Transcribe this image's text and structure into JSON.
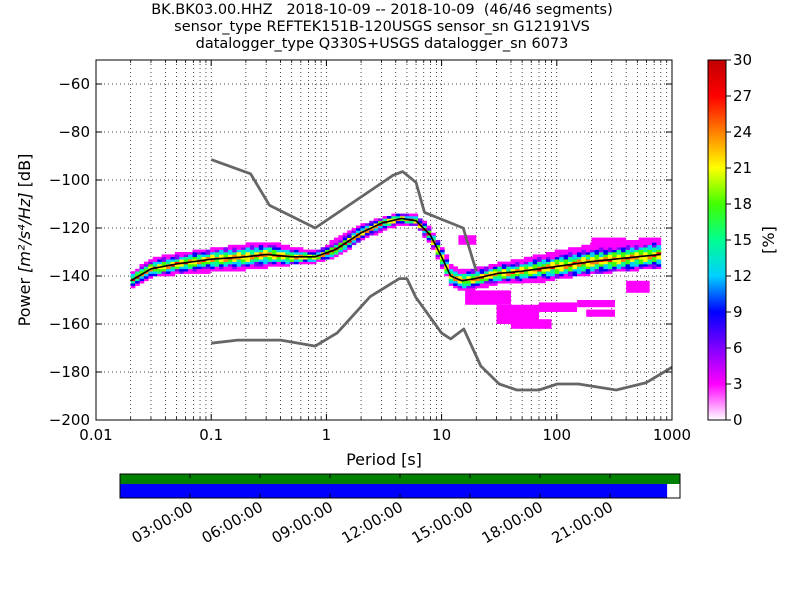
{
  "title_lines": [
    "BK.BK03.00.HHZ   2018-10-09 -- 2018-10-09  (46/46 segments)",
    "sensor_type REFTEK151B-120USGS sensor_sn G12191VS",
    "datalogger_type Q330S+USGS datalogger_sn 6073"
  ],
  "chart_data": {
    "type": "heatmap",
    "xlabel": "Period [s]",
    "ylabel_prefix": "Power ",
    "ylabel_units": "[m²/s⁴/Hz]",
    "ylabel_suffix": " [dB]",
    "x_scale": "log",
    "xlim": [
      0.01,
      1000
    ],
    "ylim": [
      -200,
      -50
    ],
    "x_ticks": [
      0.01,
      0.1,
      1,
      10,
      100,
      1000
    ],
    "x_tick_labels": [
      "0.01",
      "0.1",
      "1",
      "10",
      "100",
      "1000"
    ],
    "y_ticks": [
      -200,
      -180,
      -160,
      -140,
      -120,
      -100,
      -80,
      -60
    ],
    "y_tick_labels": [
      "−200",
      "−180",
      "−160",
      "−140",
      "−120",
      "−100",
      "−80",
      "−60"
    ],
    "grid": true,
    "colorbar": {
      "label": "[%]",
      "range": [
        0,
        30
      ],
      "ticks": [
        "0",
        "3",
        "6",
        "9",
        "12",
        "15",
        "18",
        "21",
        "24",
        "27",
        "30"
      ],
      "colors": [
        "#ffffff",
        "#ff00ff",
        "#8000ff",
        "#0000ff",
        "#00d0ff",
        "#00ff90",
        "#40ff00",
        "#ffff00",
        "#ff8000",
        "#ff0000",
        "#c00000"
      ]
    },
    "nhnm_line": {
      "color": "#666666",
      "x": [
        0.1,
        0.22,
        0.32,
        0.8,
        3.8,
        4.6,
        6,
        7.1,
        15.4,
        20
      ],
      "y": [
        -91.5,
        -97.4,
        -110.5,
        -120,
        -98,
        -96.5,
        -101,
        -113.5,
        -120,
        -138
      ]
    },
    "nlnm_line": {
      "color": "#666666",
      "x": [
        0.1,
        0.17,
        0.4,
        0.8,
        1.24,
        2.4,
        4.3,
        5,
        6,
        10,
        12,
        15.6,
        21.9,
        31.6,
        45,
        70,
        101,
        154,
        328,
        600,
        1000
      ],
      "y": [
        -168,
        -166.7,
        -166.7,
        -169.2,
        -163.7,
        -148.6,
        -141.1,
        -141.1,
        -149,
        -163.8,
        -166.2,
        -162.1,
        -177.5,
        -185,
        -187.5,
        -187.5,
        -185,
        -185,
        -187.5,
        -184.4,
        -178
      ]
    },
    "median_curve": {
      "color": "#000000",
      "x": [
        0.02,
        0.03,
        0.05,
        0.1,
        0.2,
        0.3,
        0.5,
        0.8,
        1.2,
        2,
        3,
        4.5,
        6,
        8,
        10,
        12,
        15,
        20,
        30,
        50,
        100,
        200,
        500,
        800
      ],
      "y": [
        -142,
        -137,
        -135,
        -133,
        -132,
        -131,
        -132,
        -132,
        -129,
        -122,
        -118,
        -116,
        -117,
        -123,
        -132,
        -140,
        -142,
        -141,
        -139,
        -138,
        -136,
        -134,
        -132,
        -131
      ]
    },
    "high_probability_band": {
      "x": [
        0.02,
        0.03,
        0.05,
        0.1,
        0.2,
        0.3,
        0.5,
        0.8,
        1.2,
        2,
        3,
        4.5,
        6,
        8,
        10,
        12,
        15,
        20,
        30,
        50,
        100,
        200,
        500,
        800
      ],
      "y_upper": [
        -139,
        -133,
        -131,
        -129,
        -127,
        -126,
        -128,
        -130,
        -125,
        -119,
        -116,
        -114,
        -115,
        -120,
        -128,
        -135,
        -138,
        -137,
        -135,
        -133,
        -130,
        -127,
        -125,
        -124
      ],
      "y_lower": [
        -145,
        -140,
        -139,
        -138,
        -137,
        -136,
        -135,
        -134,
        -132,
        -125,
        -121,
        -118,
        -119,
        -126,
        -136,
        -143,
        -146,
        -145,
        -143,
        -142,
        -141,
        -139,
        -137,
        -136
      ]
    },
    "outlier_patches": [
      {
        "x": [
          14,
          20
        ],
        "y": [
          -123,
          -127
        ],
        "level": "low"
      },
      {
        "x": [
          16,
          40
        ],
        "y": [
          -146,
          -152
        ],
        "level": "low"
      },
      {
        "x": [
          30,
          70
        ],
        "y": [
          -152,
          -160
        ],
        "level": "low"
      },
      {
        "x": [
          40,
          90
        ],
        "y": [
          -158,
          -162
        ],
        "level": "low"
      },
      {
        "x": [
          70,
          150
        ],
        "y": [
          -151,
          -155
        ],
        "level": "low"
      },
      {
        "x": [
          150,
          320
        ],
        "y": [
          -150,
          -153
        ],
        "level": "low"
      },
      {
        "x": [
          180,
          320
        ],
        "y": [
          -154,
          -157
        ],
        "level": "low"
      },
      {
        "x": [
          200,
          400
        ],
        "y": [
          -124,
          -128
        ],
        "level": "low"
      },
      {
        "x": [
          400,
          640
        ],
        "y": [
          -142,
          -147
        ],
        "level": "low"
      },
      {
        "x": [
          50,
          80
        ],
        "y": [
          -141,
          -143
        ],
        "level": "low"
      }
    ],
    "timeline": {
      "tick_labels": [
        "03:00:00",
        "06:00:00",
        "09:00:00",
        "12:00:00",
        "15:00:00",
        "18:00:00",
        "21:00:00"
      ],
      "tick_hours": [
        3,
        6,
        9,
        12,
        15,
        18,
        21
      ],
      "span_hours": 24,
      "data_coverage_fraction": 0.977,
      "available_color": "#008000",
      "used_color": "#0000ff"
    }
  }
}
